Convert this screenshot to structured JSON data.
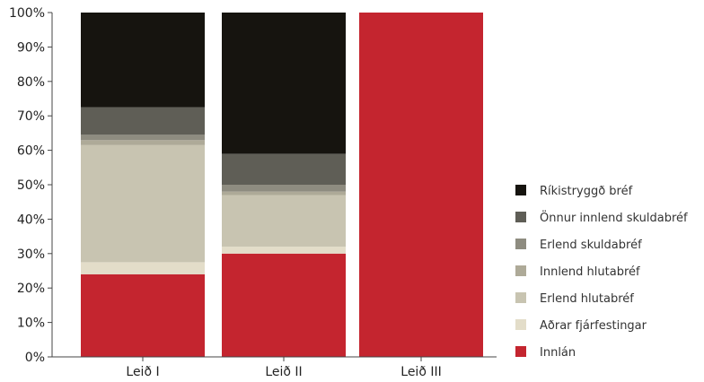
{
  "chart_data": {
    "type": "bar",
    "stacked": true,
    "percent": true,
    "categories": [
      "Leið I",
      "Leið II",
      "Leið III"
    ],
    "ylim": [
      0,
      100
    ],
    "ytick_labels": [
      "0%",
      "10%",
      "20%",
      "30%",
      "40%",
      "50%",
      "60%",
      "70%",
      "80%",
      "90%",
      "100%"
    ],
    "grid": false,
    "legend_position": "right",
    "series": [
      {
        "name": "Innlán",
        "color": "#c4252f",
        "values": [
          24,
          30,
          100
        ]
      },
      {
        "name": "Aðrar fjárfestingar",
        "color": "#e3ddc9",
        "values": [
          3.5,
          2,
          0
        ]
      },
      {
        "name": "Erlend hlutabréf",
        "color": "#c8c4b1",
        "values": [
          34,
          15,
          0
        ]
      },
      {
        "name": "Innlend hlutabréf",
        "color": "#aeaa98",
        "values": [
          1.5,
          1,
          0
        ]
      },
      {
        "name": "Erlend skuldabréf",
        "color": "#8e8c80",
        "values": [
          1.5,
          2,
          0
        ]
      },
      {
        "name": "Önnur innlend skuldabréf",
        "color": "#5f5e56",
        "values": [
          8,
          9,
          0
        ]
      },
      {
        "name": "Ríkistryggð bréf",
        "color": "#16140f",
        "values": [
          27.5,
          41,
          0
        ]
      }
    ]
  }
}
